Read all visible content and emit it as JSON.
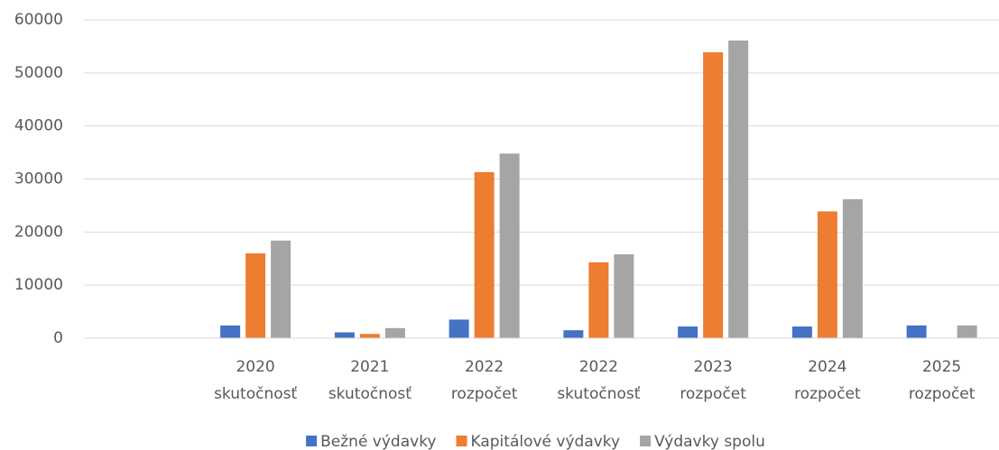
{
  "chart_data": {
    "type": "bar",
    "categories": [
      null,
      "2020 skutočnosť",
      "2021 skutočnosť",
      "2022 rozpočet",
      "2022 skutočnosť",
      "2023 rozpočet",
      "2024 rozpočet",
      "2025 rozpočet"
    ],
    "series": [
      {
        "name": "Bežné výdavky",
        "color": "#4472c4",
        "values": [
          null,
          2400,
          1100,
          3500,
          1500,
          2200,
          2200,
          2400
        ]
      },
      {
        "name": "Kapitálové výdavky",
        "color": "#ed7d31",
        "values": [
          null,
          16000,
          800,
          31300,
          14300,
          53900,
          23900,
          null
        ]
      },
      {
        "name": "Výdavky spolu",
        "color": "#a5a5a5",
        "values": [
          null,
          18400,
          1900,
          34800,
          15800,
          56100,
          26200,
          2400
        ]
      }
    ],
    "ylim": [
      0,
      60000
    ],
    "yticks": [
      0,
      10000,
      20000,
      30000,
      40000,
      50000,
      60000
    ],
    "grid": true,
    "legend": "bottom"
  }
}
